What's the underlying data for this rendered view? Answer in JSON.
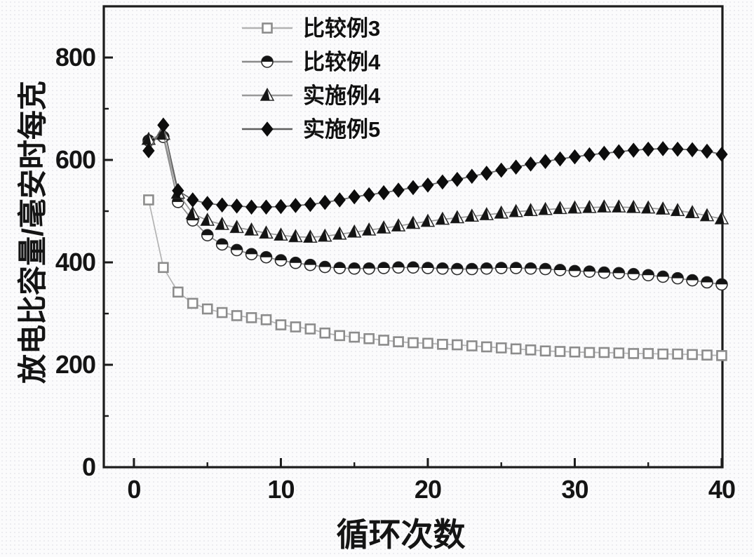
{
  "figure": {
    "background": "#fbfbfc",
    "frame_color": "#1c1c1c",
    "text_color": "#141414"
  },
  "chart_data": {
    "type": "line",
    "title": "",
    "xlabel": "循环次数",
    "ylabel": "放电比容量/毫安时每克",
    "xlim": [
      -2.05,
      40.05
    ],
    "ylim": [
      0,
      900
    ],
    "x_major_ticks": [
      0,
      10,
      20,
      30,
      40
    ],
    "x_minor_ticks": [
      5,
      15,
      25,
      35
    ],
    "y_major_ticks": [
      0,
      200,
      400,
      600,
      800
    ],
    "y_minor_ticks": [
      100,
      300,
      500,
      700
    ],
    "grid": "off",
    "legend_position": "inside-top-center",
    "x": [
      1,
      2,
      3,
      4,
      5,
      6,
      7,
      8,
      9,
      10,
      11,
      12,
      13,
      14,
      15,
      16,
      17,
      18,
      19,
      20,
      21,
      22,
      23,
      24,
      25,
      26,
      27,
      28,
      29,
      30,
      31,
      32,
      33,
      34,
      35,
      36,
      37,
      38,
      39,
      40
    ],
    "series": [
      {
        "id": "comparative-example-3",
        "name": "比较例3",
        "marker": "open-square",
        "marker_color": "#8c8c8c",
        "line_color": "#b3b3b3",
        "values": [
          522,
          390,
          342,
          320,
          309,
          302,
          296,
          292,
          288,
          278,
          274,
          270,
          262,
          257,
          254,
          251,
          248,
          245,
          243,
          242,
          240,
          239,
          237,
          235,
          233,
          231,
          229,
          227,
          226,
          225,
          224,
          224,
          223,
          222,
          222,
          221,
          221,
          220,
          219,
          218
        ]
      },
      {
        "id": "comparative-example-4",
        "name": "比较例4",
        "marker": "half-filled-circle",
        "marker_color": "#141414",
        "line_color": "#8a8a8a",
        "values": [
          638,
          645,
          518,
          482,
          453,
          435,
          424,
          416,
          410,
          404,
          399,
          395,
          391,
          389,
          388,
          388,
          389,
          390,
          390,
          389,
          388,
          387,
          387,
          388,
          389,
          389,
          388,
          387,
          385,
          383,
          382,
          380,
          379,
          377,
          375,
          372,
          369,
          365,
          361,
          357
        ]
      },
      {
        "id": "example-4",
        "name": "实施例4",
        "marker": "half-filled-triangle",
        "marker_color": "#141414",
        "line_color": "#9a9a9a",
        "values": [
          640,
          650,
          535,
          495,
          482,
          474,
          468,
          463,
          457,
          453,
          450,
          449,
          451,
          455,
          459,
          463,
          467,
          471,
          476,
          480,
          484,
          487,
          490,
          493,
          496,
          499,
          501,
          503,
          505,
          506,
          507,
          508,
          508,
          507,
          506,
          504,
          501,
          497,
          491,
          485
        ]
      },
      {
        "id": "example-5",
        "name": "实施例5",
        "marker": "filled-diamond",
        "marker_color": "#0d0d0d",
        "line_color": "#5f5f5f",
        "values": [
          618,
          668,
          540,
          522,
          515,
          512,
          510,
          508,
          508,
          509,
          511,
          513,
          517,
          522,
          528,
          532,
          536,
          541,
          546,
          551,
          557,
          562,
          568,
          574,
          580,
          586,
          592,
          597,
          602,
          606,
          610,
          613,
          616,
          619,
          621,
          622,
          621,
          620,
          617,
          611
        ]
      }
    ]
  }
}
